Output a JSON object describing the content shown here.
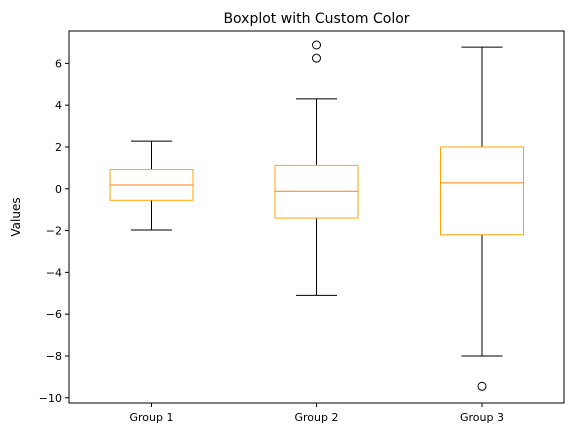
{
  "chart_data": {
    "type": "boxplot",
    "title": "Boxplot with Custom Color",
    "xlabel": "",
    "ylabel": "Values",
    "ylim": [
      -10.25,
      7.55
    ],
    "yticks": [
      -10,
      -8,
      -6,
      -4,
      -2,
      0,
      2,
      4,
      6
    ],
    "categories": [
      "Group 1",
      "Group 2",
      "Group 3"
    ],
    "box_color": "#ffa500",
    "median_color": "#ff7f0e",
    "whisker_color": "#000000",
    "grid": false,
    "boxes": [
      {
        "category": "Group 1",
        "whisker_low": -1.97,
        "q1": -0.55,
        "median": 0.18,
        "q3": 0.92,
        "whisker_high": 2.28,
        "outliers": []
      },
      {
        "category": "Group 2",
        "whisker_low": -5.1,
        "q1": -1.4,
        "median": -0.12,
        "q3": 1.12,
        "whisker_high": 4.3,
        "outliers": [
          6.25,
          6.88
        ]
      },
      {
        "category": "Group 3",
        "whisker_low": -8.0,
        "q1": -2.2,
        "median": 0.28,
        "q3": 2.0,
        "whisker_high": 6.78,
        "outliers": [
          -9.45
        ]
      }
    ]
  }
}
